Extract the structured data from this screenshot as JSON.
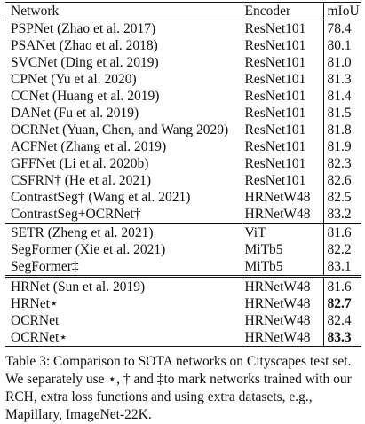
{
  "table": {
    "headers": [
      "Network",
      "Encoder",
      "mIoU"
    ],
    "groups": [
      [
        {
          "network": "PSPNet (Zhao et al. 2017)",
          "encoder": "ResNet101",
          "miou": "78.4"
        },
        {
          "network": "PSANet (Zhao et al. 2018)",
          "encoder": "ResNet101",
          "miou": "80.1"
        },
        {
          "network": "SVCNet (Ding et al. 2019)",
          "encoder": "ResNet101",
          "miou": "81.0"
        },
        {
          "network": "CPNet (Yu et al. 2020)",
          "encoder": "ResNet101",
          "miou": "81.3"
        },
        {
          "network": "CCNet (Huang et al. 2019)",
          "encoder": "ResNet101",
          "miou": "81.4"
        },
        {
          "network": "DANet (Fu et al. 2019)",
          "encoder": "ResNet101",
          "miou": "81.5"
        },
        {
          "network": "OCRNet (Yuan, Chen, and Wang 2020)",
          "encoder": "ResNet101",
          "miou": "81.8"
        },
        {
          "network": "ACFNet (Zhang et al. 2019)",
          "encoder": "ResNet101",
          "miou": "81.9"
        },
        {
          "network": "GFFNet (Li et al. 2020b)",
          "encoder": "ResNet101",
          "miou": "82.3"
        },
        {
          "network": "CSFRN† (He et al. 2021)",
          "encoder": "ResNet101",
          "miou": "82.6"
        },
        {
          "network": "ContrastSeg† (Wang et al. 2021)",
          "encoder": "HRNetW48",
          "miou": "82.5"
        },
        {
          "network": "ContrastSeg+OCRNet†",
          "encoder": "HRNetW48",
          "miou": "83.2"
        }
      ],
      [
        {
          "network": "SETR (Zheng et al. 2021)",
          "encoder": "ViT",
          "miou": "81.6"
        },
        {
          "network": "SegFormer (Xie et al. 2021)",
          "encoder": "MiTb5",
          "miou": "82.2"
        },
        {
          "network": "SegFormer‡",
          "encoder": "MiTb5",
          "miou": "83.1"
        }
      ],
      [
        {
          "network": "HRNet (Sun et al. 2019)",
          "encoder": "HRNetW48",
          "miou": "81.6"
        },
        {
          "network": "HRNet⋆",
          "encoder": "HRNetW48",
          "miou": "82.7",
          "bold": true
        },
        {
          "network": "OCRNet",
          "encoder": "HRNetW48",
          "miou": "82.4"
        },
        {
          "network": "OCRNet⋆",
          "encoder": "HRNetW48",
          "miou": "83.3",
          "bold": true
        }
      ]
    ]
  },
  "caption": "Table 3: Comparison to SOTA networks on Cityscapes test set. We separately use ⋆, † and ‡to mark networks trained with our RCH, extra loss functions and using extra datasets, e.g., Mapillary, ImageNet-22K."
}
